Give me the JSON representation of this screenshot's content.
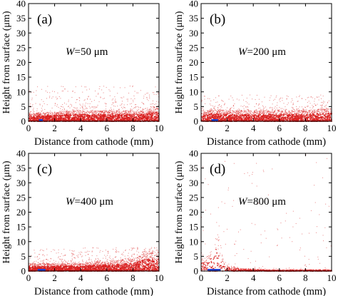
{
  "figure": {
    "panel_xlabel": "Distance from cathode (mm)",
    "panel_ylabel": "Height from surface (μm)"
  },
  "chart_data": [
    {
      "type": "scatter",
      "panel_tag": "(a)",
      "annotation_var": "W",
      "annotation_val": "=50 μm",
      "xlabel": "Distance from cathode (mm)",
      "ylabel": "Height from surface (μm)",
      "xlim": [
        0,
        10
      ],
      "ylim": [
        0,
        40
      ],
      "xticks": [
        0,
        2,
        4,
        6,
        8,
        10
      ],
      "yticks": [
        0,
        5,
        10,
        15,
        20,
        25,
        30,
        35,
        40
      ],
      "grid": false,
      "marker_color": "#d81e1e",
      "electrode_color": "#1f3fd0",
      "electrode_range": [
        0.8,
        1.1
      ],
      "height_profile": {
        "x": [
          0,
          1,
          2,
          3,
          4,
          5,
          6,
          7,
          8,
          9,
          9.5,
          10
        ],
        "height": [
          2.5,
          3,
          3,
          3.5,
          3.5,
          3.5,
          3.5,
          3.5,
          3.5,
          3.5,
          5,
          4
        ]
      },
      "sparse_max": 12,
      "point_count": 3200
    },
    {
      "type": "scatter",
      "panel_tag": "(b)",
      "annotation_var": "W",
      "annotation_val": "=200 μm",
      "xlabel": "Distance from cathode (mm)",
      "ylabel": "Height from surface (μm)",
      "xlim": [
        0,
        10
      ],
      "ylim": [
        0,
        40
      ],
      "xticks": [
        0,
        2,
        4,
        6,
        8,
        10
      ],
      "yticks": [
        0,
        5,
        10,
        15,
        20,
        25,
        30,
        35,
        40
      ],
      "grid": false,
      "marker_color": "#d81e1e",
      "electrode_color": "#1f3fd0",
      "electrode_range": [
        0.8,
        1.3
      ],
      "height_profile": {
        "x": [
          0,
          0.5,
          1,
          2,
          3,
          4,
          5,
          6,
          7,
          8,
          9,
          10
        ],
        "height": [
          3,
          3.5,
          4,
          3.5,
          3.5,
          3.5,
          3.5,
          3.5,
          3.5,
          3.5,
          4,
          4
        ]
      },
      "sparse_max": 9,
      "point_count": 3000
    },
    {
      "type": "scatter",
      "panel_tag": "(c)",
      "annotation_var": "W",
      "annotation_val": "=400 μm",
      "xlabel": "Distance from cathode (mm)",
      "ylabel": "Height from surface (μm)",
      "xlim": [
        0,
        10
      ],
      "ylim": [
        0,
        40
      ],
      "xticks": [
        0,
        2,
        4,
        6,
        8,
        10
      ],
      "yticks": [
        0,
        5,
        10,
        15,
        20,
        25,
        30,
        35,
        40
      ],
      "grid": false,
      "marker_color": "#d81e1e",
      "electrode_color": "#1f3fd0",
      "electrode_range": [
        0.7,
        1.3
      ],
      "height_profile": {
        "x": [
          0,
          1,
          2,
          3,
          4,
          5,
          6,
          7,
          8,
          8.5,
          9,
          9.5,
          10
        ],
        "height": [
          2.5,
          2.5,
          2.5,
          2.5,
          2.5,
          3,
          3,
          3.5,
          4,
          5,
          6,
          6,
          6
        ]
      },
      "sparse_max": 8,
      "point_count": 3200
    },
    {
      "type": "scatter",
      "panel_tag": "(d)",
      "annotation_var": "W",
      "annotation_val": "=800 μm",
      "xlabel": "Distance from cathode (mm)",
      "ylabel": "Height from surface (μm)",
      "xlim": [
        0,
        10
      ],
      "ylim": [
        0,
        40
      ],
      "xticks": [
        0,
        2,
        4,
        6,
        8,
        10
      ],
      "yticks": [
        0,
        5,
        10,
        15,
        20,
        25,
        30,
        35,
        40
      ],
      "grid": false,
      "marker_color": "#d81e1e",
      "electrode_color": "#1f3fd0",
      "electrode_range": [
        0.5,
        1.5
      ],
      "height_profile": {
        "x": [
          0,
          0.5,
          1,
          1.2,
          1.5,
          2,
          3,
          5,
          7,
          10
        ],
        "height": [
          4,
          5,
          8,
          12,
          6,
          2,
          1,
          0.5,
          0.5,
          0.5
        ]
      },
      "sparse_max": 40,
      "point_count": 1100
    }
  ]
}
